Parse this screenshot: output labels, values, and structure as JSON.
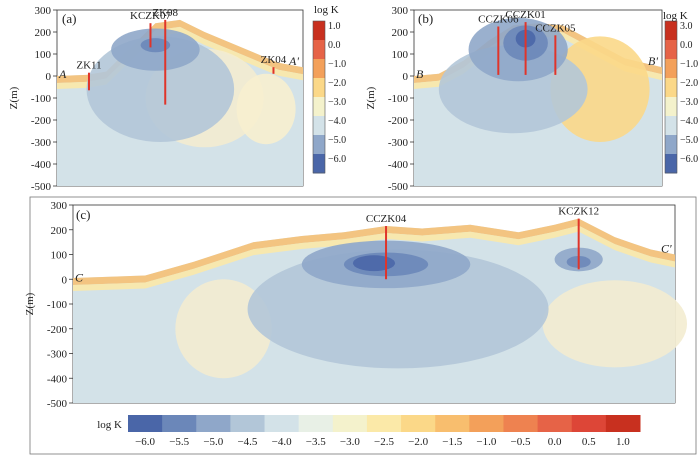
{
  "chart_data": [
    {
      "type": "heatmap",
      "panel_label": "(a)",
      "ylabel": "Z(m)",
      "ylim": [
        -500,
        300
      ],
      "yticks": [
        -500,
        -400,
        -300,
        -200,
        -100,
        0,
        100,
        200,
        300
      ],
      "section_start": "A",
      "section_end": "A'",
      "boreholes": [
        {
          "name": "ZK11",
          "pos": 0.13,
          "top": 15,
          "bottom": -65
        },
        {
          "name": "KCZK07",
          "pos": 0.38,
          "top": 240,
          "bottom": 130
        },
        {
          "name": "ZK08",
          "pos": 0.44,
          "top": 255,
          "bottom": -130
        },
        {
          "name": "ZK04",
          "pos": 0.88,
          "top": 40,
          "bottom": 10
        }
      ],
      "colorbar": {
        "title": "log K",
        "ticks": [
          "1.0",
          "0.0",
          "−1.0",
          "−2.0",
          "−3.0",
          "−4.0",
          "−5.0",
          "−6.0"
        ]
      }
    },
    {
      "type": "heatmap",
      "panel_label": "(b)",
      "ylabel": "Z(m)",
      "ylim": [
        -500,
        300
      ],
      "yticks": [
        -500,
        -400,
        -300,
        -200,
        -100,
        0,
        100,
        200,
        300
      ],
      "section_start": "B",
      "section_end": "B'",
      "boreholes": [
        {
          "name": "CCZK06",
          "pos": 0.34,
          "top": 225,
          "bottom": 5
        },
        {
          "name": "CCZK01",
          "pos": 0.45,
          "top": 245,
          "bottom": 5
        },
        {
          "name": "CCZK05",
          "pos": 0.57,
          "top": 185,
          "bottom": 5
        }
      ],
      "colorbar": {
        "title": "log K",
        "ticks": [
          "3.0",
          "0.0",
          "−1.0",
          "−2.0",
          "−3.0",
          "−4.0",
          "−5.0",
          "−6.0"
        ]
      }
    },
    {
      "type": "heatmap",
      "panel_label": "(c)",
      "ylabel": "Z(m)",
      "ylim": [
        -500,
        300
      ],
      "yticks": [
        -500,
        -400,
        -300,
        -200,
        -100,
        0,
        100,
        200,
        300
      ],
      "section_start": "C",
      "section_end": "C'",
      "boreholes": [
        {
          "name": "CCZK04",
          "pos": 0.52,
          "top": 215,
          "bottom": 0
        },
        {
          "name": "KCZK12",
          "pos": 0.84,
          "top": 245,
          "bottom": 40
        }
      ],
      "colorbar": {
        "title": "log K",
        "ticks": [
          "−6.0",
          "−5.5",
          "−5.0",
          "−4.5",
          "−4.0",
          "−3.5",
          "−3.0",
          "−2.5",
          "−2.0",
          "−1.5",
          "−1.0",
          "−0.5",
          "0.0",
          "0.5",
          "1.0"
        ]
      }
    }
  ],
  "colors": {
    "scale": [
      "#4a66a8",
      "#6b87b9",
      "#8fa7c9",
      "#b2c6d8",
      "#d3e2e8",
      "#e8f0e6",
      "#f4f2cc",
      "#fbe9a8",
      "#fbd888",
      "#f8be6e",
      "#f3a05a",
      "#ee8250",
      "#e66347",
      "#dd4637",
      "#c8301f"
    ],
    "borehole": "#e0342a"
  }
}
